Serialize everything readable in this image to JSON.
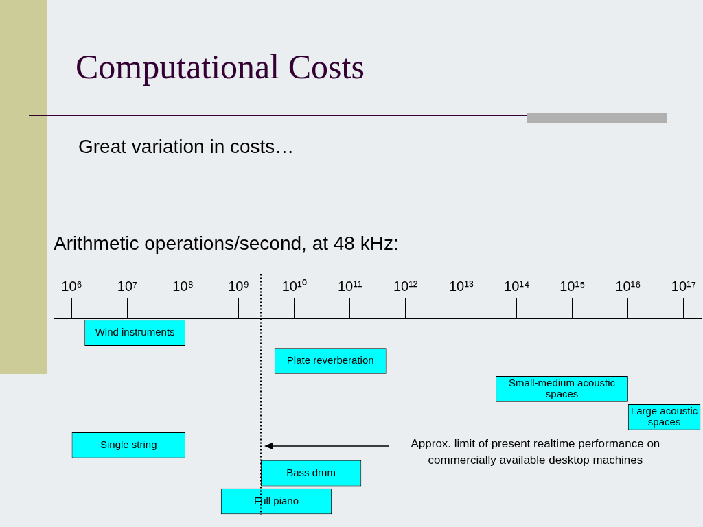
{
  "chart_data": {
    "type": "bar",
    "orientation": "horizontal",
    "title": "Computational Costs",
    "subtitle": "Great variation in costs…",
    "xlabel": "Arithmetic operations/second, at 48 kHz:",
    "categories": [
      "Wind instruments",
      "Plate reverberation",
      "Small-medium acoustic spaces",
      "Large acoustic spaces",
      "Single string",
      "Bass drum",
      "Full piano"
    ],
    "series": [
      {
        "color": "#00ffff",
        "values": [
          108300000,
          445600000000,
          9958000000000000,
          190000000000000000,
          109000000,
          157500000000,
          46520000000
        ],
        "base": [
          1700000,
          4400000000,
          42000000000000,
          10000000000000000,
          1000000,
          2500000000,
          480000000
        ]
      }
    ],
    "log": "x",
    "xlim": [
      470000,
      210000000000000000
    ],
    "xticks": [
      {
        "value": 1000000,
        "label": "10⁶"
      },
      {
        "value": 10000000,
        "label": "10⁷"
      },
      {
        "value": 100000000,
        "label": "10⁸"
      },
      {
        "value": 1000000000,
        "label": "10⁹"
      },
      {
        "value": 10000000000,
        "label": "10¹⁰"
      },
      {
        "value": 100000000000,
        "label": "10¹¹"
      },
      {
        "value": 1000000000000,
        "label": "10¹²"
      },
      {
        "value": 10000000000000,
        "label": "10¹³"
      },
      {
        "value": 100000000000000,
        "label": "10¹⁴"
      },
      {
        "value": 1000000000000000,
        "label": "10¹⁵"
      },
      {
        "value": 10000000000000000,
        "label": "10¹⁶"
      },
      {
        "value": 100000000000000000,
        "label": "10¹⁷"
      }
    ],
    "ref_lines": [
      {
        "axis": "x",
        "value": 2500000000,
        "label": "Approx. limit of present realtime performance on commercially available desktop machines",
        "line_style": "dotted"
      }
    ],
    "grid": false,
    "legend": false
  }
}
